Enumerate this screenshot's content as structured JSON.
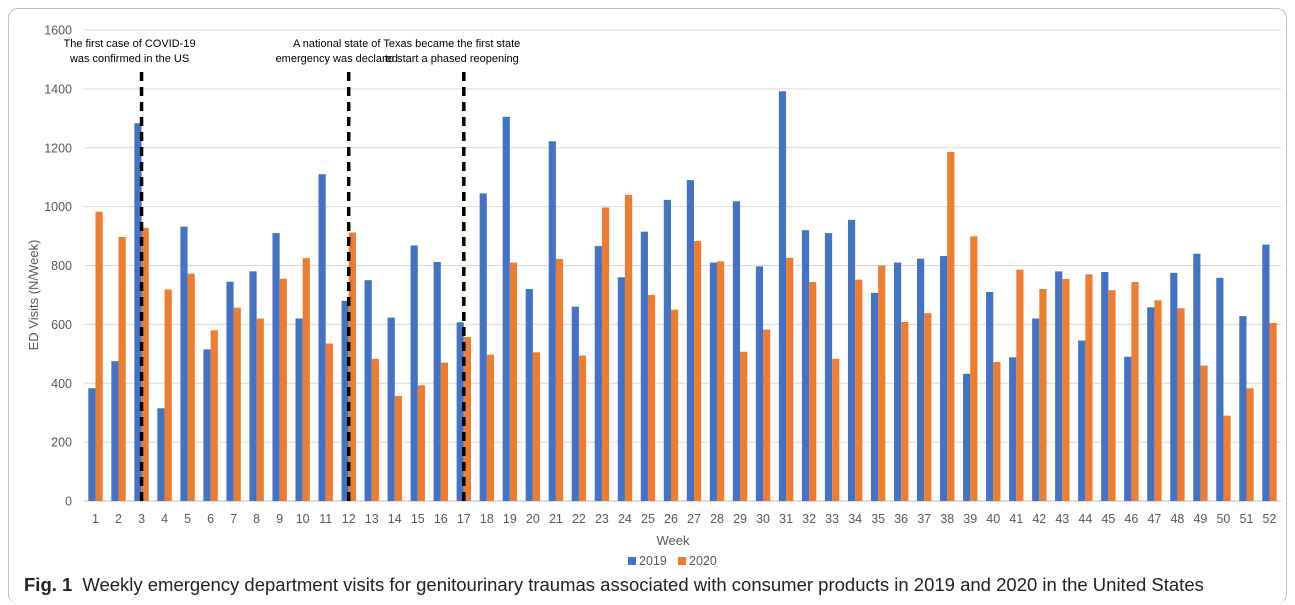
{
  "chart_data": {
    "type": "bar",
    "title": "",
    "xlabel": "Week",
    "ylabel": "ED Visits (N/Week)",
    "ylim": [
      0,
      1600
    ],
    "yticks": [
      0,
      200,
      400,
      600,
      800,
      1000,
      1200,
      1400,
      1600
    ],
    "grid": true,
    "legend_position": "bottom",
    "categories": [
      "1",
      "2",
      "3",
      "4",
      "5",
      "6",
      "7",
      "8",
      "9",
      "10",
      "11",
      "12",
      "13",
      "14",
      "15",
      "16",
      "17",
      "18",
      "19",
      "20",
      "21",
      "22",
      "23",
      "24",
      "25",
      "26",
      "27",
      "28",
      "29",
      "30",
      "31",
      "32",
      "33",
      "34",
      "35",
      "36",
      "37",
      "38",
      "39",
      "40",
      "41",
      "42",
      "43",
      "44",
      "45",
      "46",
      "47",
      "48",
      "49",
      "50",
      "51",
      "52"
    ],
    "series": [
      {
        "name": "2019",
        "color": "#4472c4",
        "values": [
          383,
          475,
          1283,
          315,
          932,
          515,
          745,
          780,
          910,
          620,
          1110,
          680,
          750,
          623,
          868,
          812,
          607,
          1045,
          1305,
          720,
          1222,
          660,
          866,
          760,
          915,
          1023,
          1090,
          810,
          1018,
          797,
          1392,
          920,
          910,
          955,
          707,
          810,
          823,
          832,
          432,
          710,
          488,
          620,
          780,
          545,
          778,
          490,
          658,
          775,
          840,
          758,
          628,
          871
        ]
      },
      {
        "name": "2020",
        "color": "#ed7d31",
        "values": [
          983,
          897,
          928,
          718,
          772,
          580,
          657,
          620,
          755,
          825,
          535,
          912,
          483,
          357,
          393,
          470,
          557,
          497,
          810,
          505,
          822,
          494,
          997,
          1040,
          700,
          650,
          883,
          814,
          507,
          582,
          826,
          744,
          483,
          752,
          800,
          608,
          638,
          1186,
          899,
          472,
          786,
          720,
          754,
          770,
          716,
          744,
          682,
          655,
          460,
          290,
          383,
          605
        ]
      }
    ],
    "annotations": [
      {
        "week": "3",
        "line1": "The first case of COVID-19",
        "line2": "was confirmed in the US"
      },
      {
        "week": "12",
        "line1": "A national state of",
        "line2": "emergency was declared"
      },
      {
        "week": "17",
        "line1": "Texas became the first state",
        "line2": "to start a phased reopening"
      }
    ]
  },
  "caption": {
    "label": "Fig. 1",
    "text": "Weekly emergency department visits for genitourinary traumas associated with consumer products in 2019 and 2020 in the United States"
  }
}
